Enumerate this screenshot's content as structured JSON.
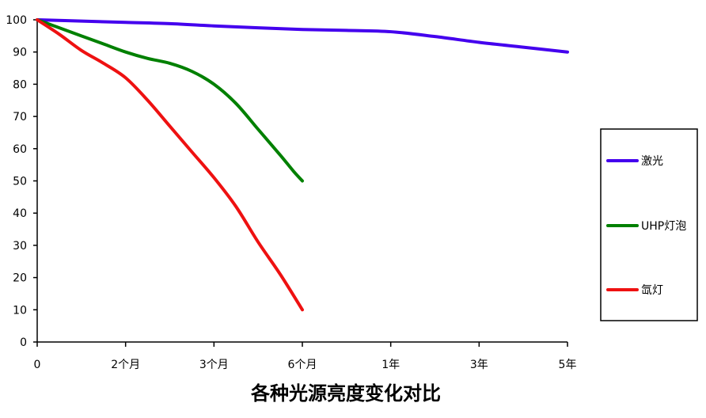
{
  "chart_data": {
    "type": "line",
    "title": "",
    "xlabel": "各种光源亮度变化对比",
    "ylabel": "",
    "ylim": [
      0,
      100
    ],
    "y_ticks": [
      "0",
      "10",
      "20",
      "30",
      "40",
      "50",
      "60",
      "70",
      "80",
      "90",
      "100"
    ],
    "x_ticks": [
      "0",
      "2个月",
      "3个月",
      "6个月",
      "1年",
      "3年",
      "5年"
    ],
    "grid": false,
    "legend_position": "right",
    "series": [
      {
        "name": "激光",
        "color": "#4400ee",
        "x": [
          0,
          0.5,
          1,
          1.5,
          2,
          2.5,
          3,
          3.5,
          4,
          4.5,
          5,
          5.5,
          6
        ],
        "values": [
          100,
          99.6,
          99.2,
          98.8,
          98.1,
          97.5,
          97,
          96.7,
          96.3,
          94.8,
          93,
          91.5,
          90
        ]
      },
      {
        "name": "UHP灯泡",
        "color": "#008000",
        "x": [
          0,
          0.25,
          0.5,
          0.75,
          1,
          1.25,
          1.5,
          1.75,
          2,
          2.25,
          2.5,
          2.75,
          2.9,
          3
        ],
        "values": [
          100,
          97.5,
          95,
          92.5,
          90,
          88,
          86.5,
          84,
          80,
          74,
          66,
          58,
          53,
          50
        ]
      },
      {
        "name": "氙灯",
        "color": "#ee1111",
        "x": [
          0,
          0.25,
          0.5,
          0.75,
          1,
          1.25,
          1.5,
          1.75,
          2,
          2.25,
          2.5,
          2.75,
          3
        ],
        "values": [
          100,
          95.5,
          90.5,
          86.5,
          82,
          75,
          67,
          59,
          51,
          42,
          31,
          21,
          10
        ]
      }
    ]
  }
}
